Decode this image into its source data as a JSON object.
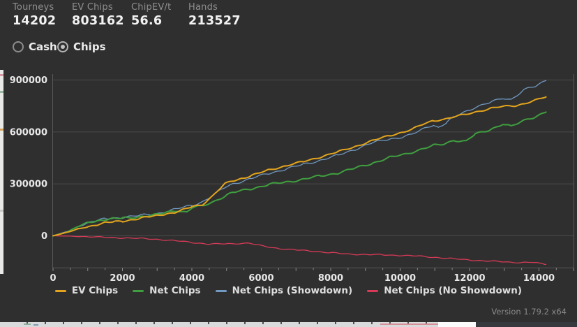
{
  "stats": {
    "items": [
      {
        "label": "Tourneys",
        "value": "14202"
      },
      {
        "label": "EV Chips",
        "value": "803162"
      },
      {
        "label": "ChipEV/t",
        "value": "56.6"
      },
      {
        "label": "Hands",
        "value": "213527"
      }
    ]
  },
  "view_toggle": {
    "options": [
      {
        "label": "Cash",
        "selected": false
      },
      {
        "label": "Chips",
        "selected": true
      }
    ]
  },
  "footer": {
    "version": "Version 1.79.2 x64"
  },
  "colors": {
    "background": "#2f2f2f",
    "gridline": "#4a4a4a",
    "axis_border": "#595959",
    "tick_label": "#e8e8e8",
    "ev_chips": "#e2a41e",
    "net_chips": "#3f9e3f",
    "net_chips_showdown": "#7299c1",
    "net_chips_no_showdown": "#d63a56"
  },
  "chart_data": {
    "type": "line",
    "title": "",
    "xlabel": "",
    "ylabel": "",
    "x_unit": "tournaments",
    "y_unit": "chips",
    "xlim": [
      0,
      15000
    ],
    "ylim": [
      -185000,
      930000
    ],
    "x_ticks": [
      0,
      2000,
      4000,
      6000,
      8000,
      10000,
      12000,
      14000
    ],
    "y_ticks": [
      0,
      300000,
      600000,
      900000
    ],
    "grid": "horizontal",
    "legend_position": "bottom",
    "series": [
      {
        "name": "EV Chips",
        "color": "#e2a41e",
        "final_value": 803162,
        "points": [
          [
            0,
            0
          ],
          [
            300,
            15000
          ],
          [
            500,
            26000
          ],
          [
            750,
            40000
          ],
          [
            1000,
            52000
          ],
          [
            1250,
            64000
          ],
          [
            1500,
            77000
          ],
          [
            1750,
            80000
          ],
          [
            2000,
            84000
          ],
          [
            2250,
            93000
          ],
          [
            2500,
            101000
          ],
          [
            2750,
            109000
          ],
          [
            3000,
            117000
          ],
          [
            3250,
            128000
          ],
          [
            3500,
            133000
          ],
          [
            3750,
            150000
          ],
          [
            4000,
            169000
          ],
          [
            4300,
            181000
          ],
          [
            4600,
            230000
          ],
          [
            4950,
            300000
          ],
          [
            5200,
            319000
          ],
          [
            5450,
            333000
          ],
          [
            5700,
            346000
          ],
          [
            6200,
            380000
          ],
          [
            6700,
            404000
          ],
          [
            7200,
            428000
          ],
          [
            7700,
            455000
          ],
          [
            8200,
            484000
          ],
          [
            8700,
            516000
          ],
          [
            9200,
            549000
          ],
          [
            9700,
            580000
          ],
          [
            10100,
            600000
          ],
          [
            10340,
            614000
          ],
          [
            10700,
            648000
          ],
          [
            10950,
            666000
          ],
          [
            11250,
            672000
          ],
          [
            11550,
            686000
          ],
          [
            11850,
            700000
          ],
          [
            12150,
            715000
          ],
          [
            12600,
            735000
          ],
          [
            12960,
            747000
          ],
          [
            13300,
            752000
          ],
          [
            13560,
            763000
          ],
          [
            13900,
            782000
          ],
          [
            14202,
            803162
          ]
        ]
      },
      {
        "name": "Net Chips",
        "color": "#3f9e3f",
        "final_value": 715000,
        "points": [
          [
            0,
            0
          ],
          [
            300,
            16000
          ],
          [
            500,
            32000
          ],
          [
            750,
            56000
          ],
          [
            1000,
            75000
          ],
          [
            1250,
            86000
          ],
          [
            1500,
            95000
          ],
          [
            1750,
            99000
          ],
          [
            2000,
            101000
          ],
          [
            2500,
            112000
          ],
          [
            3000,
            121000
          ],
          [
            3300,
            138000
          ],
          [
            3600,
            148000
          ],
          [
            3850,
            136000
          ],
          [
            4000,
            161000
          ],
          [
            4300,
            172000
          ],
          [
            4600,
            196000
          ],
          [
            5000,
            235000
          ],
          [
            5200,
            250000
          ],
          [
            5700,
            272000
          ],
          [
            6200,
            295000
          ],
          [
            6700,
            310000
          ],
          [
            7200,
            327000
          ],
          [
            7700,
            345000
          ],
          [
            8200,
            363000
          ],
          [
            8700,
            390000
          ],
          [
            9200,
            420000
          ],
          [
            9700,
            452000
          ],
          [
            10100,
            470000
          ],
          [
            10340,
            484000
          ],
          [
            10700,
            505000
          ],
          [
            10950,
            521000
          ],
          [
            11250,
            530000
          ],
          [
            11550,
            553000
          ],
          [
            11900,
            545000
          ],
          [
            12150,
            585000
          ],
          [
            12600,
            615000
          ],
          [
            12960,
            646000
          ],
          [
            13200,
            630000
          ],
          [
            13560,
            666000
          ],
          [
            13900,
            690000
          ],
          [
            14202,
            715000
          ]
        ]
      },
      {
        "name": "Net Chips (Showdown)",
        "color": "#7299c1",
        "final_value": 897000,
        "points": [
          [
            0,
            0
          ],
          [
            300,
            18000
          ],
          [
            500,
            30000
          ],
          [
            750,
            55000
          ],
          [
            1000,
            77000
          ],
          [
            1250,
            88000
          ],
          [
            1500,
            97000
          ],
          [
            1750,
            102000
          ],
          [
            2000,
            107000
          ],
          [
            2500,
            117000
          ],
          [
            3000,
            129000
          ],
          [
            3500,
            152000
          ],
          [
            4000,
            177000
          ],
          [
            4300,
            196000
          ],
          [
            4600,
            232000
          ],
          [
            5000,
            285000
          ],
          [
            5200,
            302000
          ],
          [
            5700,
            330000
          ],
          [
            6200,
            360000
          ],
          [
            6700,
            385000
          ],
          [
            7200,
            412000
          ],
          [
            7700,
            437000
          ],
          [
            8200,
            464000
          ],
          [
            8700,
            500000
          ],
          [
            9200,
            537000
          ],
          [
            9700,
            560000
          ],
          [
            10100,
            572000
          ],
          [
            10340,
            585000
          ],
          [
            10700,
            620000
          ],
          [
            10950,
            642000
          ],
          [
            11100,
            626000
          ],
          [
            11350,
            655000
          ],
          [
            11550,
            686000
          ],
          [
            11850,
            715000
          ],
          [
            12150,
            743000
          ],
          [
            12600,
            770000
          ],
          [
            12960,
            795000
          ],
          [
            13200,
            788000
          ],
          [
            13560,
            844000
          ],
          [
            13900,
            862000
          ],
          [
            14202,
            897000
          ]
        ]
      },
      {
        "name": "Net Chips (No Showdown)",
        "color": "#d63a56",
        "final_value": -165000,
        "points": [
          [
            0,
            0
          ],
          [
            500,
            -2000
          ],
          [
            1000,
            -5000
          ],
          [
            1500,
            -9000
          ],
          [
            2000,
            -12000
          ],
          [
            2500,
            -15000
          ],
          [
            3000,
            -20000
          ],
          [
            3500,
            -28000
          ],
          [
            4000,
            -38000
          ],
          [
            4500,
            -48000
          ],
          [
            5000,
            -46000
          ],
          [
            5650,
            -42000
          ],
          [
            6000,
            -58000
          ],
          [
            6500,
            -73000
          ],
          [
            7000,
            -82000
          ],
          [
            7500,
            -89000
          ],
          [
            8000,
            -98000
          ],
          [
            8500,
            -105000
          ],
          [
            9000,
            -108000
          ],
          [
            9500,
            -110000
          ],
          [
            10000,
            -113000
          ],
          [
            10500,
            -117000
          ],
          [
            11000,
            -124000
          ],
          [
            11500,
            -132000
          ],
          [
            12050,
            -140000
          ],
          [
            12500,
            -146000
          ],
          [
            13000,
            -150000
          ],
          [
            13500,
            -155000
          ],
          [
            13800,
            -153000
          ],
          [
            14202,
            -165000
          ]
        ]
      }
    ]
  }
}
